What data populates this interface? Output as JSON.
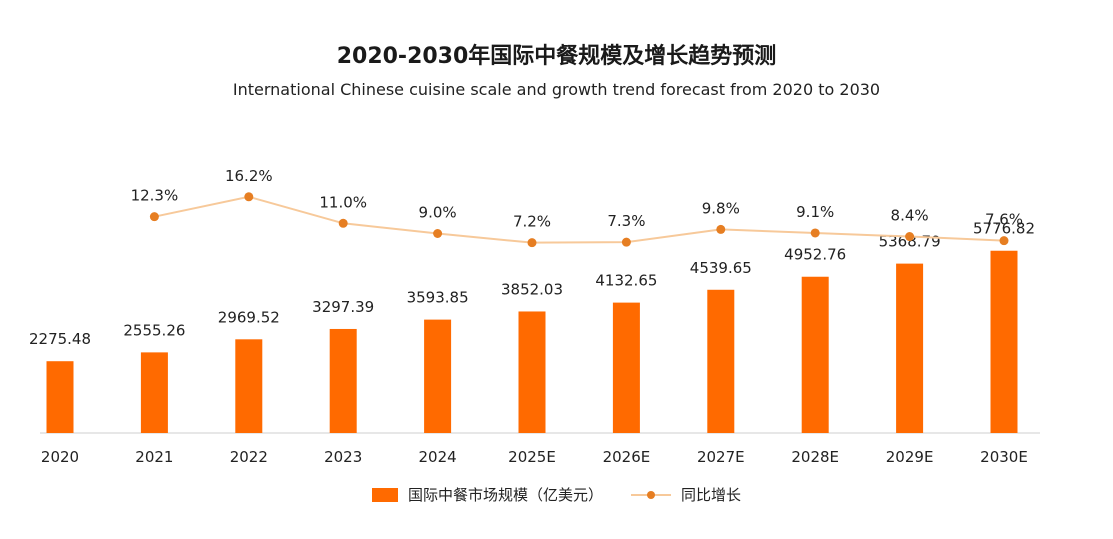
{
  "chart_data": {
    "type": "bar",
    "title": "2020-2030年国际中餐规模及增长趋势预测",
    "subtitle": "International Chinese cuisine scale and growth trend forecast from 2020 to 2030",
    "categories": [
      "2020",
      "2021",
      "2022",
      "2023",
      "2024",
      "2025E",
      "2026E",
      "2027E",
      "2028E",
      "2029E",
      "2030E"
    ],
    "series": [
      {
        "name": "国际中餐市场规模（亿美元）",
        "type": "bar",
        "values": [
          2275.48,
          2555.26,
          2969.52,
          3297.39,
          3593.85,
          3852.03,
          4132.65,
          4539.65,
          4952.76,
          5368.79,
          5776.82
        ],
        "labels": [
          "2275.48",
          "2555.26",
          "2969.52",
          "3297.39",
          "3593.85",
          "3852.03",
          "4132.65",
          "4539.65",
          "4952.76",
          "5368.79",
          "5776.82"
        ],
        "color": "#ff6a00"
      },
      {
        "name": "同比增长",
        "type": "line",
        "values": [
          null,
          12.3,
          16.2,
          11.0,
          9.0,
          7.2,
          7.3,
          9.8,
          9.1,
          8.4,
          7.6
        ],
        "labels": [
          "",
          "12.3%",
          "16.2%",
          "11.0%",
          "9.0%",
          "7.2%",
          "7.3%",
          "9.8%",
          "9.1%",
          "8.4%",
          "7.6%"
        ],
        "color": "#f7c99a",
        "marker_color": "#e67e22"
      }
    ],
    "legend": "bottom",
    "grid": false
  }
}
